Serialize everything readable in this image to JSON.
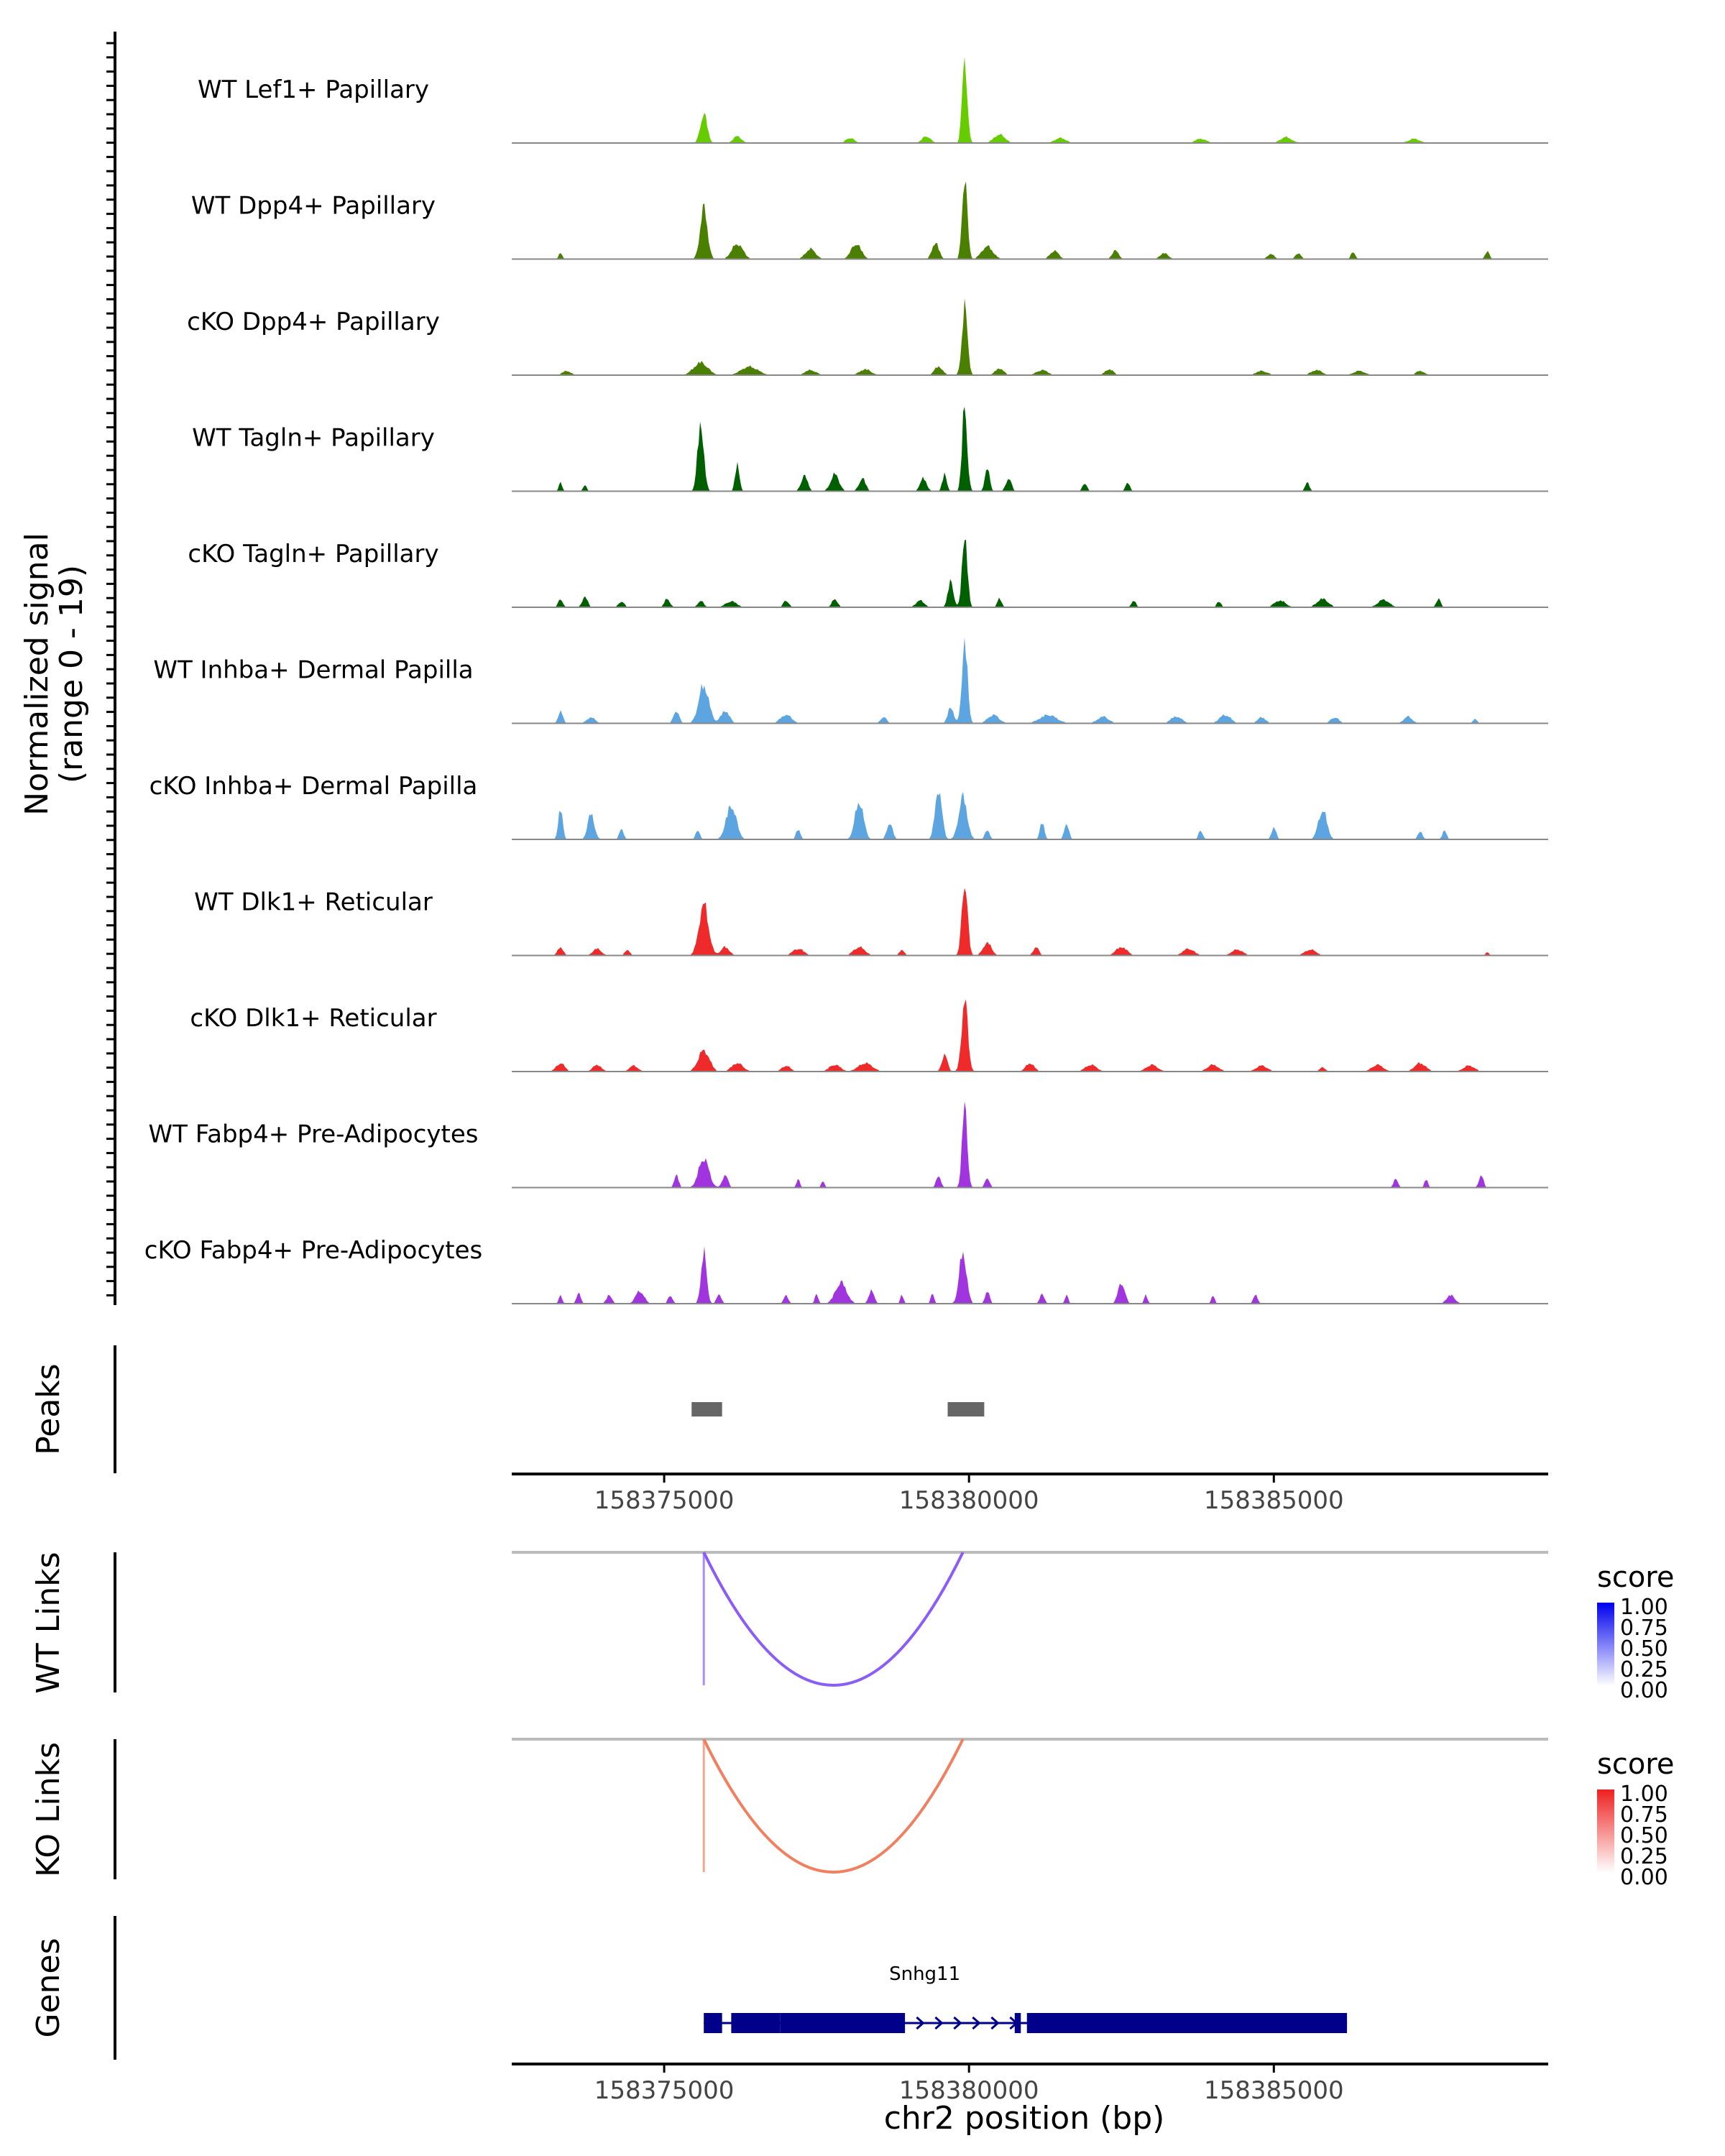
{
  "chart_data": {
    "type": "area",
    "title": "",
    "ylabel_line1": "Normalized signal",
    "ylabel_line2": "(range 0 - 19)",
    "xlabel": "chr2 position (bp)",
    "xlim": [
      158372500,
      158389500
    ],
    "x_ticks": [
      158375000,
      158380000,
      158385000
    ],
    "x_tick_labels": [
      "158375000",
      "158380000",
      "158385000"
    ],
    "y_range": [
      0,
      19
    ],
    "tracks": [
      {
        "name": "WT Lef1+ Papillary",
        "color": "#66CC00",
        "peaks": [
          [
            158375650,
            0.35,
            120
          ],
          [
            158376200,
            0.08,
            150
          ],
          [
            158378050,
            0.06,
            150
          ],
          [
            158379300,
            0.08,
            150
          ],
          [
            158379930,
            1.0,
            90
          ],
          [
            158380500,
            0.1,
            200
          ],
          [
            158381500,
            0.06,
            200
          ],
          [
            158383800,
            0.05,
            200
          ],
          [
            158385200,
            0.07,
            200
          ],
          [
            158387300,
            0.05,
            200
          ]
        ]
      },
      {
        "name": "WT Dpp4+ Papillary",
        "color": "#4A7F00",
        "peaks": [
          [
            158373300,
            0.08,
            60
          ],
          [
            158375650,
            0.6,
            130
          ],
          [
            158376200,
            0.18,
            200
          ],
          [
            158377400,
            0.12,
            180
          ],
          [
            158378150,
            0.18,
            180
          ],
          [
            158379450,
            0.2,
            120
          ],
          [
            158379930,
            1.0,
            90
          ],
          [
            158380300,
            0.15,
            200
          ],
          [
            158381400,
            0.1,
            150
          ],
          [
            158382400,
            0.1,
            120
          ],
          [
            158383200,
            0.07,
            150
          ],
          [
            158384950,
            0.06,
            120
          ],
          [
            158385400,
            0.07,
            100
          ],
          [
            158386300,
            0.08,
            80
          ],
          [
            158388500,
            0.09,
            80
          ]
        ]
      },
      {
        "name": "cKO Dpp4+ Papillary",
        "color": "#4A7F00",
        "peaks": [
          [
            158373400,
            0.05,
            150
          ],
          [
            158375600,
            0.15,
            250
          ],
          [
            158376400,
            0.1,
            300
          ],
          [
            158377400,
            0.06,
            200
          ],
          [
            158378300,
            0.07,
            200
          ],
          [
            158379500,
            0.1,
            150
          ],
          [
            158379930,
            0.8,
            100
          ],
          [
            158380500,
            0.08,
            150
          ],
          [
            158381200,
            0.06,
            200
          ],
          [
            158382300,
            0.07,
            150
          ],
          [
            158384800,
            0.05,
            200
          ],
          [
            158385700,
            0.06,
            200
          ],
          [
            158386400,
            0.05,
            200
          ],
          [
            158387400,
            0.05,
            150
          ]
        ]
      },
      {
        "name": "WT Tagln+ Papillary",
        "color": "#005F00",
        "peaks": [
          [
            158373300,
            0.1,
            60
          ],
          [
            158373700,
            0.08,
            60
          ],
          [
            158375600,
            0.8,
            110
          ],
          [
            158376200,
            0.3,
            80
          ],
          [
            158377300,
            0.18,
            120
          ],
          [
            158377800,
            0.2,
            150
          ],
          [
            158378250,
            0.15,
            120
          ],
          [
            158379250,
            0.15,
            120
          ],
          [
            158379600,
            0.2,
            80
          ],
          [
            158379930,
            1.0,
            90
          ],
          [
            158380300,
            0.3,
            80
          ],
          [
            158380650,
            0.15,
            100
          ],
          [
            158381900,
            0.1,
            80
          ],
          [
            158382600,
            0.1,
            80
          ],
          [
            158385550,
            0.1,
            80
          ]
        ]
      },
      {
        "name": "cKO Tagln+ Papillary",
        "color": "#005F00",
        "peaks": [
          [
            158373300,
            0.1,
            80
          ],
          [
            158373700,
            0.12,
            100
          ],
          [
            158374300,
            0.07,
            100
          ],
          [
            158375050,
            0.1,
            100
          ],
          [
            158375600,
            0.08,
            100
          ],
          [
            158376100,
            0.07,
            200
          ],
          [
            158377000,
            0.08,
            100
          ],
          [
            158377800,
            0.1,
            100
          ],
          [
            158379200,
            0.08,
            150
          ],
          [
            158379700,
            0.3,
            100
          ],
          [
            158379930,
            0.9,
            90
          ],
          [
            158380500,
            0.1,
            80
          ],
          [
            158382700,
            0.08,
            80
          ],
          [
            158384100,
            0.07,
            80
          ],
          [
            158385100,
            0.08,
            200
          ],
          [
            158385800,
            0.1,
            200
          ],
          [
            158386800,
            0.09,
            200
          ],
          [
            158387700,
            0.1,
            80
          ]
        ]
      },
      {
        "name": "WT Inhba+ Dermal Papilla",
        "color": "#5DA5E0",
        "peaks": [
          [
            158373300,
            0.15,
            80
          ],
          [
            158373800,
            0.07,
            150
          ],
          [
            158375200,
            0.15,
            100
          ],
          [
            158375650,
            0.45,
            180
          ],
          [
            158376000,
            0.15,
            150
          ],
          [
            158377000,
            0.1,
            200
          ],
          [
            158378600,
            0.08,
            100
          ],
          [
            158379700,
            0.2,
            100
          ],
          [
            158379930,
            0.95,
            100
          ],
          [
            158380400,
            0.1,
            200
          ],
          [
            158381300,
            0.1,
            300
          ],
          [
            158382200,
            0.08,
            200
          ],
          [
            158383400,
            0.08,
            200
          ],
          [
            158384200,
            0.1,
            200
          ],
          [
            158384800,
            0.07,
            150
          ],
          [
            158386000,
            0.07,
            150
          ],
          [
            158387200,
            0.08,
            150
          ],
          [
            158388300,
            0.05,
            80
          ]
        ]
      },
      {
        "name": "cKO Inhba+ Dermal Papilla",
        "color": "#5DA5E0",
        "peaks": [
          [
            158373300,
            0.35,
            80
          ],
          [
            158373800,
            0.3,
            120
          ],
          [
            158374300,
            0.12,
            80
          ],
          [
            158375550,
            0.1,
            80
          ],
          [
            158376100,
            0.4,
            180
          ],
          [
            158377200,
            0.12,
            80
          ],
          [
            158378200,
            0.45,
            150
          ],
          [
            158378700,
            0.2,
            100
          ],
          [
            158379500,
            0.6,
            120
          ],
          [
            158379900,
            0.5,
            150
          ],
          [
            158380300,
            0.12,
            80
          ],
          [
            158381200,
            0.2,
            80
          ],
          [
            158381600,
            0.2,
            80
          ],
          [
            158383800,
            0.1,
            80
          ],
          [
            158385000,
            0.15,
            80
          ],
          [
            158385800,
            0.35,
            150
          ],
          [
            158387400,
            0.1,
            80
          ],
          [
            158387800,
            0.1,
            80
          ]
        ]
      },
      {
        "name": "WT Dlk1+ Reticular",
        "color": "#EE2A2A",
        "peaks": [
          [
            158373300,
            0.1,
            100
          ],
          [
            158373900,
            0.08,
            150
          ],
          [
            158374400,
            0.06,
            100
          ],
          [
            158375650,
            0.6,
            170
          ],
          [
            158376000,
            0.1,
            150
          ],
          [
            158377200,
            0.08,
            200
          ],
          [
            158378200,
            0.1,
            200
          ],
          [
            158378900,
            0.06,
            100
          ],
          [
            158379930,
            0.9,
            100
          ],
          [
            158380300,
            0.15,
            150
          ],
          [
            158381100,
            0.1,
            100
          ],
          [
            158382500,
            0.1,
            200
          ],
          [
            158383600,
            0.08,
            200
          ],
          [
            158384400,
            0.07,
            200
          ],
          [
            158385600,
            0.07,
            200
          ],
          [
            158388500,
            0.04,
            60
          ]
        ]
      },
      {
        "name": "cKO Dlk1+ Reticular",
        "color": "#EE2A2A",
        "peaks": [
          [
            158373300,
            0.1,
            150
          ],
          [
            158373900,
            0.08,
            150
          ],
          [
            158374500,
            0.07,
            150
          ],
          [
            158375650,
            0.25,
            200
          ],
          [
            158376200,
            0.1,
            200
          ],
          [
            158377000,
            0.07,
            150
          ],
          [
            158377800,
            0.08,
            200
          ],
          [
            158378300,
            0.1,
            250
          ],
          [
            158379930,
            0.85,
            110
          ],
          [
            158379600,
            0.2,
            100
          ],
          [
            158381000,
            0.1,
            150
          ],
          [
            158382000,
            0.08,
            200
          ],
          [
            158383000,
            0.08,
            200
          ],
          [
            158384000,
            0.08,
            200
          ],
          [
            158384800,
            0.07,
            200
          ],
          [
            158385800,
            0.05,
            100
          ],
          [
            158386700,
            0.08,
            200
          ],
          [
            158387400,
            0.1,
            200
          ],
          [
            158388200,
            0.07,
            200
          ]
        ]
      },
      {
        "name": "WT Fabp4+ Pre-Adipocytes",
        "color": "#A035E0",
        "peaks": [
          [
            158375200,
            0.15,
            80
          ],
          [
            158375650,
            0.35,
            180
          ],
          [
            158376000,
            0.15,
            100
          ],
          [
            158377200,
            0.1,
            60
          ],
          [
            158377600,
            0.08,
            60
          ],
          [
            158379500,
            0.15,
            80
          ],
          [
            158379930,
            1.0,
            90
          ],
          [
            158380300,
            0.12,
            80
          ],
          [
            158387000,
            0.1,
            80
          ],
          [
            158387500,
            0.1,
            60
          ],
          [
            158388400,
            0.15,
            80
          ]
        ]
      },
      {
        "name": "cKO Fabp4+ Pre-Adipocytes",
        "color": "#A035E0",
        "peaks": [
          [
            158373300,
            0.1,
            60
          ],
          [
            158373600,
            0.12,
            80
          ],
          [
            158374100,
            0.1,
            100
          ],
          [
            158374600,
            0.15,
            150
          ],
          [
            158375100,
            0.1,
            80
          ],
          [
            158375650,
            0.6,
            100
          ],
          [
            158375900,
            0.12,
            80
          ],
          [
            158377000,
            0.1,
            80
          ],
          [
            158377500,
            0.12,
            60
          ],
          [
            158377900,
            0.25,
            200
          ],
          [
            158378400,
            0.15,
            100
          ],
          [
            158378900,
            0.1,
            60
          ],
          [
            158379400,
            0.12,
            60
          ],
          [
            158379900,
            0.6,
            130
          ],
          [
            158380300,
            0.15,
            80
          ],
          [
            158381200,
            0.12,
            80
          ],
          [
            158381600,
            0.1,
            60
          ],
          [
            158382500,
            0.25,
            120
          ],
          [
            158382900,
            0.1,
            60
          ],
          [
            158384000,
            0.1,
            60
          ],
          [
            158384700,
            0.1,
            80
          ],
          [
            158387900,
            0.1,
            150
          ]
        ]
      }
    ],
    "peaks_track": {
      "label": "Peaks",
      "color": "#666666",
      "regions": [
        [
          158375450,
          158375950
        ],
        [
          158379650,
          158380250
        ]
      ]
    },
    "links": [
      {
        "label": "WT Links",
        "legend_title": "score",
        "color": "#8B5CF6",
        "legend_low": "#FFFFFF",
        "legend_high": "#0000EE",
        "legend_values": [
          "1.00",
          "0.75",
          "0.50",
          "0.25",
          "0.00"
        ],
        "arc_from": 158375650,
        "arc_to": 158379900
      },
      {
        "label": "KO Links",
        "legend_title": "score",
        "color": "#F08060",
        "legend_low": "#FFFFFF",
        "legend_high": "#EE2020",
        "legend_values": [
          "1.00",
          "0.75",
          "0.50",
          "0.25",
          "0.00"
        ],
        "arc_from": 158375650,
        "arc_to": 158379900
      }
    ],
    "genes": {
      "label": "Genes",
      "gene_name": "Snhg11",
      "color": "#00008B",
      "start": 158375650,
      "end": 158386200,
      "exons": [
        [
          158375650,
          158375950
        ],
        [
          158376100,
          158376900
        ],
        [
          158376900,
          158378950
        ],
        [
          158380750,
          158380850
        ],
        [
          158380950,
          158386200
        ]
      ]
    }
  }
}
